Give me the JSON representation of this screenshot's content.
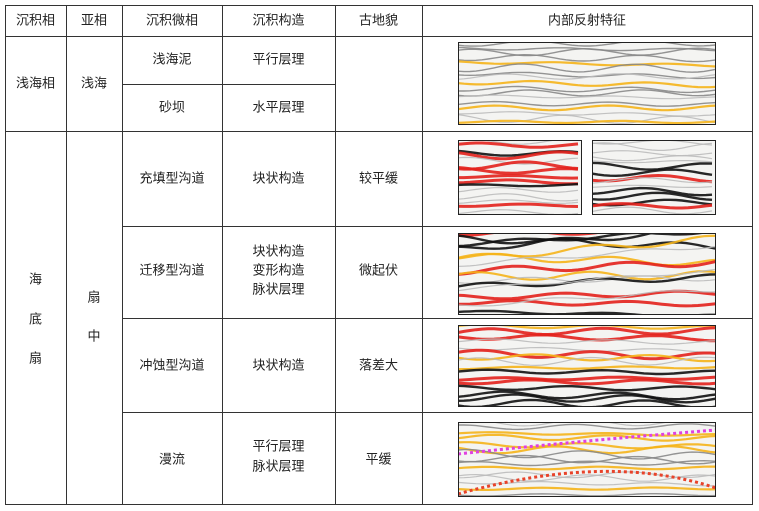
{
  "table": {
    "header": [
      "沉积相",
      "亚相",
      "沉积微相",
      "沉积构造",
      "古地貌",
      "内部反射特征"
    ],
    "groups": [
      {
        "facies": [
          "浅海相"
        ],
        "subfacies": [
          "浅海"
        ],
        "rows": [
          {
            "microfacies": "浅海泥",
            "structure": [
              "平行层理"
            ]
          },
          {
            "microfacies": "砂坝",
            "structure": [
              "水平层理"
            ]
          }
        ]
      },
      {
        "facies": [
          "海",
          "底",
          "扇"
        ],
        "subfacies": [
          "扇",
          "中"
        ],
        "rows": [
          {
            "microfacies": "充填型沟道",
            "structure": [
              "块状构造"
            ],
            "paleo": "较平缓"
          },
          {
            "microfacies": "迁移型沟道",
            "structure": [
              "块状构造",
              "变形构造",
              "脉状层理"
            ],
            "paleo": "微起伏"
          },
          {
            "microfacies": "冲蚀型沟道",
            "structure": [
              "块状构造"
            ],
            "paleo": "落差大"
          },
          {
            "microfacies": "漫流",
            "structure": [
              "平行层理",
              "脉状层理"
            ],
            "paleo": "平缓"
          }
        ]
      }
    ]
  }
}
